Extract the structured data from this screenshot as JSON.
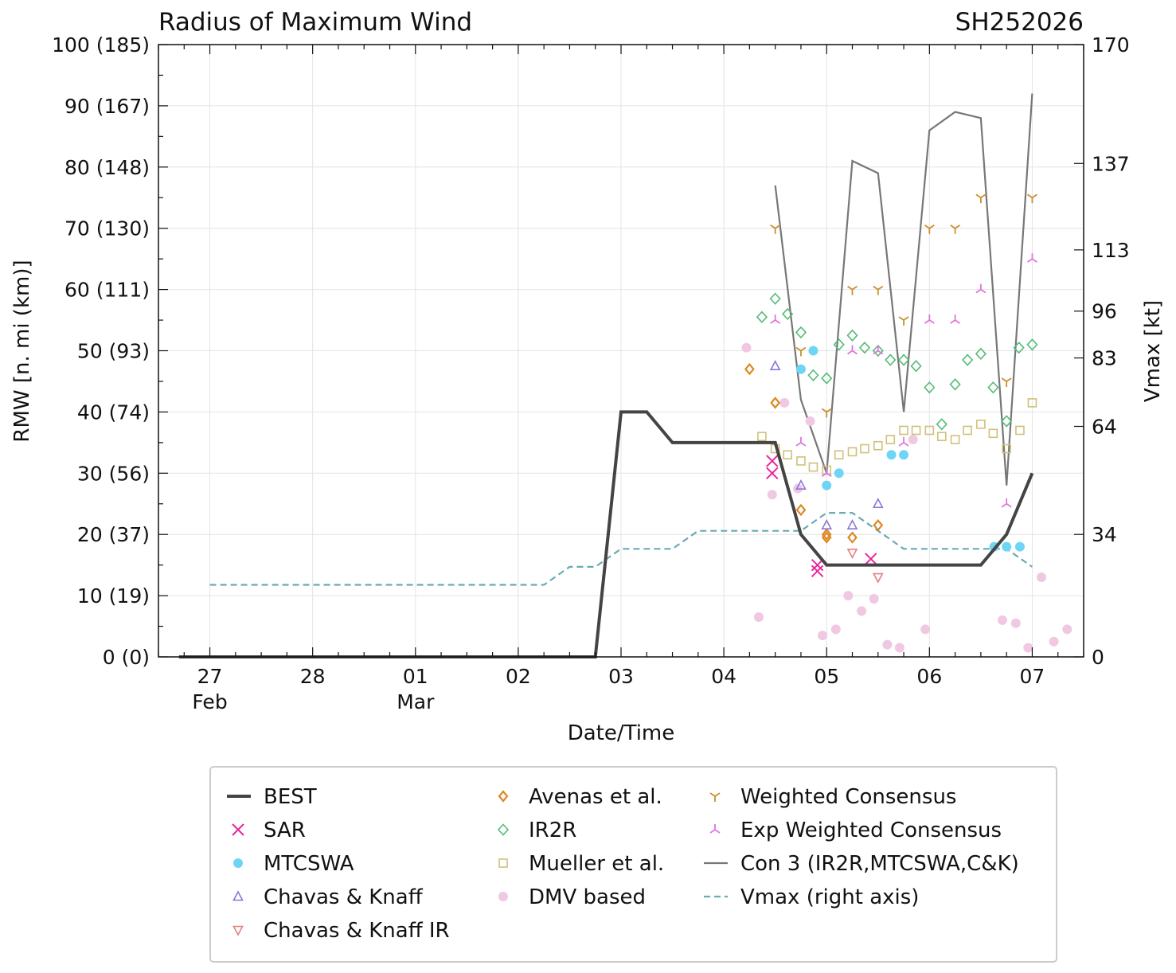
{
  "chart_data": {
    "type": "line",
    "title": "Radius of Maximum Wind",
    "storm_id": "SH252026",
    "xlabel": "Date/Time",
    "ylabel": "RMW [n. mi (km)]",
    "y2label": "Vmax [kt]",
    "xlim": [
      -0.5,
      8.5
    ],
    "ylim": [
      0,
      100
    ],
    "x_units": "days since 27 Feb 00 UTC",
    "x_ticks": [
      {
        "x": 0,
        "label": "27",
        "sub": "Feb"
      },
      {
        "x": 1,
        "label": "28",
        "sub": ""
      },
      {
        "x": 2,
        "label": "01",
        "sub": "Mar"
      },
      {
        "x": 3,
        "label": "02",
        "sub": ""
      },
      {
        "x": 4,
        "label": "03",
        "sub": ""
      },
      {
        "x": 5,
        "label": "04",
        "sub": ""
      },
      {
        "x": 6,
        "label": "05",
        "sub": ""
      },
      {
        "x": 7,
        "label": "06",
        "sub": ""
      },
      {
        "x": 8,
        "label": "07",
        "sub": ""
      }
    ],
    "y_ticks": [
      {
        "v": 0,
        "label": "0 (0)"
      },
      {
        "v": 10,
        "label": "10 (19)"
      },
      {
        "v": 20,
        "label": "20 (37)"
      },
      {
        "v": 30,
        "label": "30 (56)"
      },
      {
        "v": 40,
        "label": "40 (74)"
      },
      {
        "v": 50,
        "label": "50 (93)"
      },
      {
        "v": 60,
        "label": "60 (111)"
      },
      {
        "v": 70,
        "label": "70 (130)"
      },
      {
        "v": 80,
        "label": "80 (148)"
      },
      {
        "v": 90,
        "label": "90 (167)"
      },
      {
        "v": 100,
        "label": "100 (185)"
      }
    ],
    "y2lim": [
      0,
      170
    ],
    "y2_ticks": [
      {
        "v": 0,
        "label": "0"
      },
      {
        "v": 34,
        "label": "34"
      },
      {
        "v": 64,
        "label": "64"
      },
      {
        "v": 83,
        "label": "83"
      },
      {
        "v": 96,
        "label": "96"
      },
      {
        "v": 113,
        "label": "113"
      },
      {
        "v": 137,
        "label": "137"
      },
      {
        "v": 170,
        "label": "170"
      }
    ],
    "series": [
      {
        "name": "BEST",
        "style": "line",
        "color": "#444444",
        "x": [
          -0.3,
          3.75,
          4.0,
          4.25,
          4.5,
          5.0,
          5.5,
          5.75,
          6.0,
          6.25,
          6.5,
          7.0,
          7.25,
          7.5,
          7.75,
          8.0
        ],
        "y": [
          0,
          0,
          40,
          40,
          35,
          35,
          35,
          20,
          15,
          15,
          15,
          15,
          15,
          15,
          20,
          30
        ]
      },
      {
        "name": "SAR",
        "style": "x",
        "color": "#e8279c",
        "x": [
          5.47,
          5.47,
          5.91,
          5.91,
          6.43
        ],
        "y": [
          32,
          30,
          15,
          14,
          16
        ]
      },
      {
        "name": "MTCSWA",
        "style": "circle",
        "color": "#6fd5f6",
        "x": [
          5.75,
          5.87,
          6.0,
          6.12,
          6.63,
          6.75,
          7.63,
          7.75,
          7.88
        ],
        "y": [
          47,
          50,
          28,
          30,
          33,
          33,
          18,
          18,
          18
        ]
      },
      {
        "name": "Chavas & Knaff",
        "style": "triangle-up",
        "color": "#8877dd",
        "x": [
          5.5,
          5.75,
          6.0,
          6.25,
          6.5
        ],
        "y": [
          47.5,
          28,
          21.5,
          21.5,
          25
        ]
      },
      {
        "name": "Chavas & Knaff IR",
        "style": "triangle-down",
        "color": "#e58080",
        "x": [
          6.25,
          6.5
        ],
        "y": [
          17,
          13
        ]
      },
      {
        "name": "Avenas et al.",
        "style": "diamond",
        "color": "#dd8822",
        "x": [
          5.25,
          5.5,
          5.75,
          6.0,
          6.0,
          6.25,
          6.5
        ],
        "y": [
          47,
          41.5,
          24,
          19.5,
          20,
          19.5,
          21.5
        ]
      },
      {
        "name": "IR2R",
        "style": "diamond-open",
        "color": "#55bb77",
        "x": [
          5.37,
          5.5,
          5.62,
          5.75,
          5.87,
          6.0,
          6.12,
          6.25,
          6.37,
          6.5,
          6.62,
          6.75,
          6.87,
          7.0,
          7.12,
          7.25,
          7.37,
          7.5,
          7.62,
          7.75,
          7.87,
          8.0
        ],
        "y": [
          55.5,
          58.5,
          56,
          53,
          46,
          45.5,
          51,
          52.5,
          50.5,
          50,
          48.5,
          48.5,
          47.5,
          44,
          38,
          44.5,
          48.5,
          49.5,
          44,
          38.5,
          50.5,
          51
        ]
      },
      {
        "name": "Mueller et al.",
        "style": "square",
        "color": "#cfc17a",
        "x": [
          5.37,
          5.5,
          5.62,
          5.75,
          5.87,
          6.0,
          6.12,
          6.25,
          6.37,
          6.5,
          6.62,
          6.75,
          6.87,
          7.0,
          7.12,
          7.25,
          7.37,
          7.5,
          7.62,
          7.75,
          7.88,
          8.0
        ],
        "y": [
          36,
          34,
          33,
          32,
          31,
          30.5,
          33,
          33.5,
          34,
          34.5,
          35.5,
          37,
          37,
          37,
          36,
          35.5,
          37,
          38,
          36.5,
          34,
          37,
          41.5
        ]
      },
      {
        "name": "DMV based",
        "style": "dot-light",
        "color": "#f0c8e2",
        "x": [
          5.22,
          5.34,
          5.47,
          5.59,
          5.72,
          5.84,
          5.96,
          6.09,
          6.21,
          6.34,
          6.46,
          6.59,
          6.71,
          6.84,
          6.96,
          7.71,
          7.84,
          7.96,
          8.09,
          8.21,
          8.34
        ],
        "y": [
          50.5,
          6.5,
          26.5,
          41.5,
          27.5,
          38.5,
          3.5,
          4.5,
          10,
          7.5,
          9.5,
          2,
          1.5,
          35.5,
          4.5,
          6,
          5.5,
          1.5,
          13,
          2.5,
          4.5
        ]
      },
      {
        "name": "Weighted Consensus",
        "style": "tri-down",
        "color": "#c9902f",
        "x": [
          5.5,
          5.75,
          6.0,
          6.25,
          6.5,
          6.75,
          7.0,
          7.25,
          7.5,
          7.75,
          8.0
        ],
        "y": [
          70,
          50,
          40,
          60,
          60,
          55,
          70,
          70,
          75,
          45,
          75
        ]
      },
      {
        "name": "Exp Weighted Consensus",
        "style": "tri-up",
        "color": "#dd77dd",
        "x": [
          5.5,
          5.75,
          6.0,
          6.25,
          6.5,
          6.75,
          7.0,
          7.25,
          7.5,
          7.75,
          8.0
        ],
        "y": [
          55,
          35,
          30,
          50,
          50,
          35,
          55,
          55,
          60,
          25,
          65
        ]
      },
      {
        "name": "Con 3 (IR2R,MTCSWA,C&K)",
        "style": "line",
        "color": "#777777",
        "x": [
          5.5,
          5.75,
          6.0,
          6.25,
          6.5,
          6.75,
          7.0,
          7.25,
          7.5,
          7.75,
          8.0
        ],
        "y": [
          77,
          42,
          30,
          81,
          79,
          40,
          86,
          89,
          88,
          28,
          92
        ]
      },
      {
        "name": "Vmax (right axis)",
        "style": "dashed",
        "color": "#6aaab4",
        "axis": "right",
        "x": [
          0,
          3.25,
          3.5,
          3.75,
          4.0,
          4.5,
          4.75,
          5.0,
          5.5,
          5.75,
          6.0,
          6.25,
          6.5,
          6.75,
          7.0,
          7.25,
          7.5,
          7.75,
          8.0
        ],
        "y": [
          20,
          20,
          25,
          25,
          30,
          30,
          35,
          35,
          35,
          35,
          40,
          40,
          35,
          30,
          30,
          30,
          30,
          30,
          25
        ]
      }
    ],
    "legend": {
      "position": "bottom",
      "columns": [
        [
          "BEST",
          "SAR",
          "MTCSWA",
          "Chavas & Knaff",
          "Chavas & Knaff IR"
        ],
        [
          "Avenas et al.",
          "IR2R",
          "Mueller et al.",
          "DMV based"
        ],
        [
          "Weighted Consensus",
          "Exp Weighted Consensus",
          "Con 3 (IR2R,MTCSWA,C&K)",
          "Vmax (right axis)"
        ]
      ]
    }
  }
}
